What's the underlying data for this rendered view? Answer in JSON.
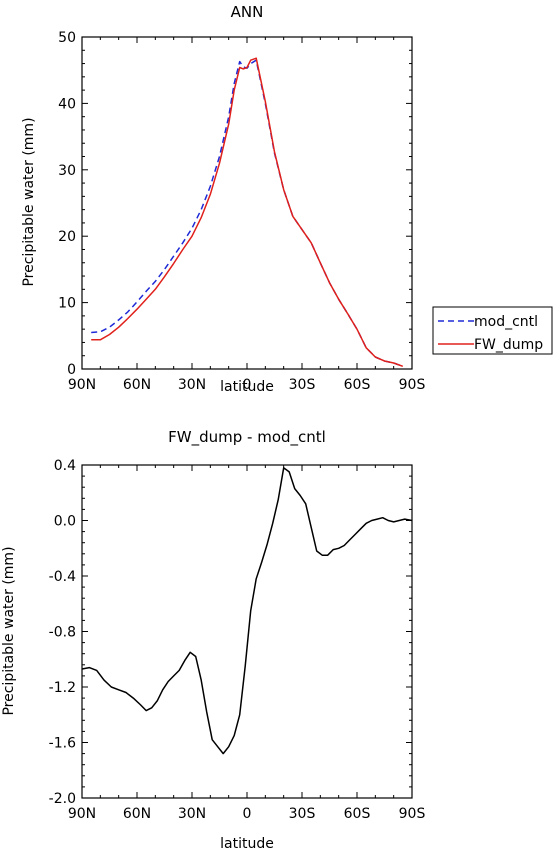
{
  "chart_data": [
    {
      "type": "line",
      "title": "ANN",
      "xlabel": "latitude",
      "ylabel": "Precipitable water (mm)",
      "ylim": [
        0,
        50
      ],
      "yticks": [
        0,
        10,
        20,
        30,
        40,
        50
      ],
      "xlim": [
        90,
        -90
      ],
      "xticks": [
        90,
        60,
        30,
        0,
        -30,
        -60,
        -90
      ],
      "xtick_labels": [
        "90N",
        "60N",
        "30N",
        "0",
        "30S",
        "60S",
        "90S"
      ],
      "legend": {
        "position": "right"
      },
      "series": [
        {
          "name": "mod_cntl",
          "color": "#1f2ad6",
          "dash": true,
          "x": [
            85,
            80,
            75,
            70,
            65,
            60,
            55,
            50,
            45,
            40,
            35,
            30,
            25,
            20,
            15,
            10,
            7,
            4,
            2,
            0,
            -2,
            -5,
            -10,
            -15,
            -20,
            -25,
            -30,
            -35,
            -40,
            -45,
            -50,
            -55,
            -60,
            -65,
            -70,
            -75,
            -80,
            -85
          ],
          "values": [
            5.5,
            5.6,
            6.3,
            7.4,
            8.6,
            10.1,
            11.7,
            13.2,
            15.0,
            17.0,
            19.0,
            21.2,
            24.0,
            27.5,
            32.0,
            38.0,
            43.0,
            46.3,
            45.5,
            45.3,
            46.0,
            46.5,
            40.0,
            32.5,
            27.0,
            23.0,
            21.0,
            19.0,
            16.0,
            13.0,
            10.5,
            8.3,
            6.0,
            3.2,
            1.8,
            1.2,
            0.9,
            0.4
          ]
        },
        {
          "name": "FW_dump",
          "color": "#e0201b",
          "dash": false,
          "x": [
            85,
            80,
            75,
            70,
            65,
            60,
            55,
            50,
            45,
            40,
            35,
            30,
            25,
            20,
            15,
            10,
            7,
            4,
            2,
            0,
            -2,
            -5,
            -10,
            -15,
            -20,
            -25,
            -30,
            -35,
            -40,
            -45,
            -50,
            -55,
            -60,
            -65,
            -70,
            -75,
            -80,
            -85
          ],
          "values": [
            4.4,
            4.4,
            5.2,
            6.3,
            7.6,
            9.0,
            10.5,
            12.0,
            13.9,
            15.9,
            18.0,
            20.0,
            22.8,
            26.3,
            31.0,
            36.9,
            42.0,
            45.4,
            45.2,
            45.4,
            46.5,
            46.8,
            40.3,
            32.7,
            27.0,
            23.0,
            21.0,
            19.0,
            16.0,
            13.0,
            10.5,
            8.3,
            6.0,
            3.2,
            1.8,
            1.2,
            0.9,
            0.4
          ]
        }
      ]
    },
    {
      "type": "line",
      "title": "FW_dump - mod_cntl",
      "xlabel": "latitude",
      "ylabel": "Precipitable water (mm)",
      "ylim": [
        -2.0,
        0.4
      ],
      "yticks": [
        -2.0,
        -1.6,
        -1.2,
        -0.8,
        -0.4,
        0.0,
        0.4
      ],
      "ytick_labels": [
        "-2.0",
        "-1.6",
        "-1.2",
        "-0.8",
        "-0.4",
        "0.0",
        "0.4"
      ],
      "xlim": [
        90,
        -90
      ],
      "xticks": [
        90,
        60,
        30,
        0,
        -30,
        -60,
        -90
      ],
      "xtick_labels": [
        "90N",
        "60N",
        "30N",
        "0",
        "30S",
        "60S",
        "90S"
      ],
      "series": [
        {
          "color": "#000000",
          "dash": false,
          "x": [
            90,
            86,
            82,
            78,
            74,
            70,
            66,
            62,
            58,
            55,
            52,
            49,
            46,
            43,
            40,
            37,
            34,
            31,
            28,
            25,
            22,
            19,
            16,
            13,
            10,
            7,
            4,
            1,
            -2,
            -5,
            -8,
            -11,
            -14,
            -17,
            -20,
            -23,
            -26,
            -29,
            -32,
            -35,
            -38,
            -41,
            -44,
            -47,
            -50,
            -53,
            -56,
            -59,
            -62,
            -65,
            -68,
            -71,
            -74,
            -77,
            -80,
            -83,
            -86,
            -90
          ],
          "values": [
            -1.07,
            -1.06,
            -1.08,
            -1.15,
            -1.2,
            -1.22,
            -1.24,
            -1.28,
            -1.33,
            -1.37,
            -1.35,
            -1.3,
            -1.22,
            -1.16,
            -1.12,
            -1.08,
            -1.01,
            -0.95,
            -0.98,
            -1.15,
            -1.38,
            -1.58,
            -1.63,
            -1.68,
            -1.63,
            -1.55,
            -1.4,
            -1.05,
            -0.65,
            -0.42,
            -0.3,
            -0.17,
            -0.02,
            0.15,
            0.38,
            0.35,
            0.23,
            0.18,
            0.12,
            -0.05,
            -0.22,
            -0.25,
            -0.25,
            -0.21,
            -0.2,
            -0.18,
            -0.14,
            -0.1,
            -0.06,
            -0.02,
            0.0,
            0.01,
            0.02,
            0.0,
            -0.01,
            0.0,
            0.01,
            0.0
          ]
        }
      ]
    }
  ]
}
